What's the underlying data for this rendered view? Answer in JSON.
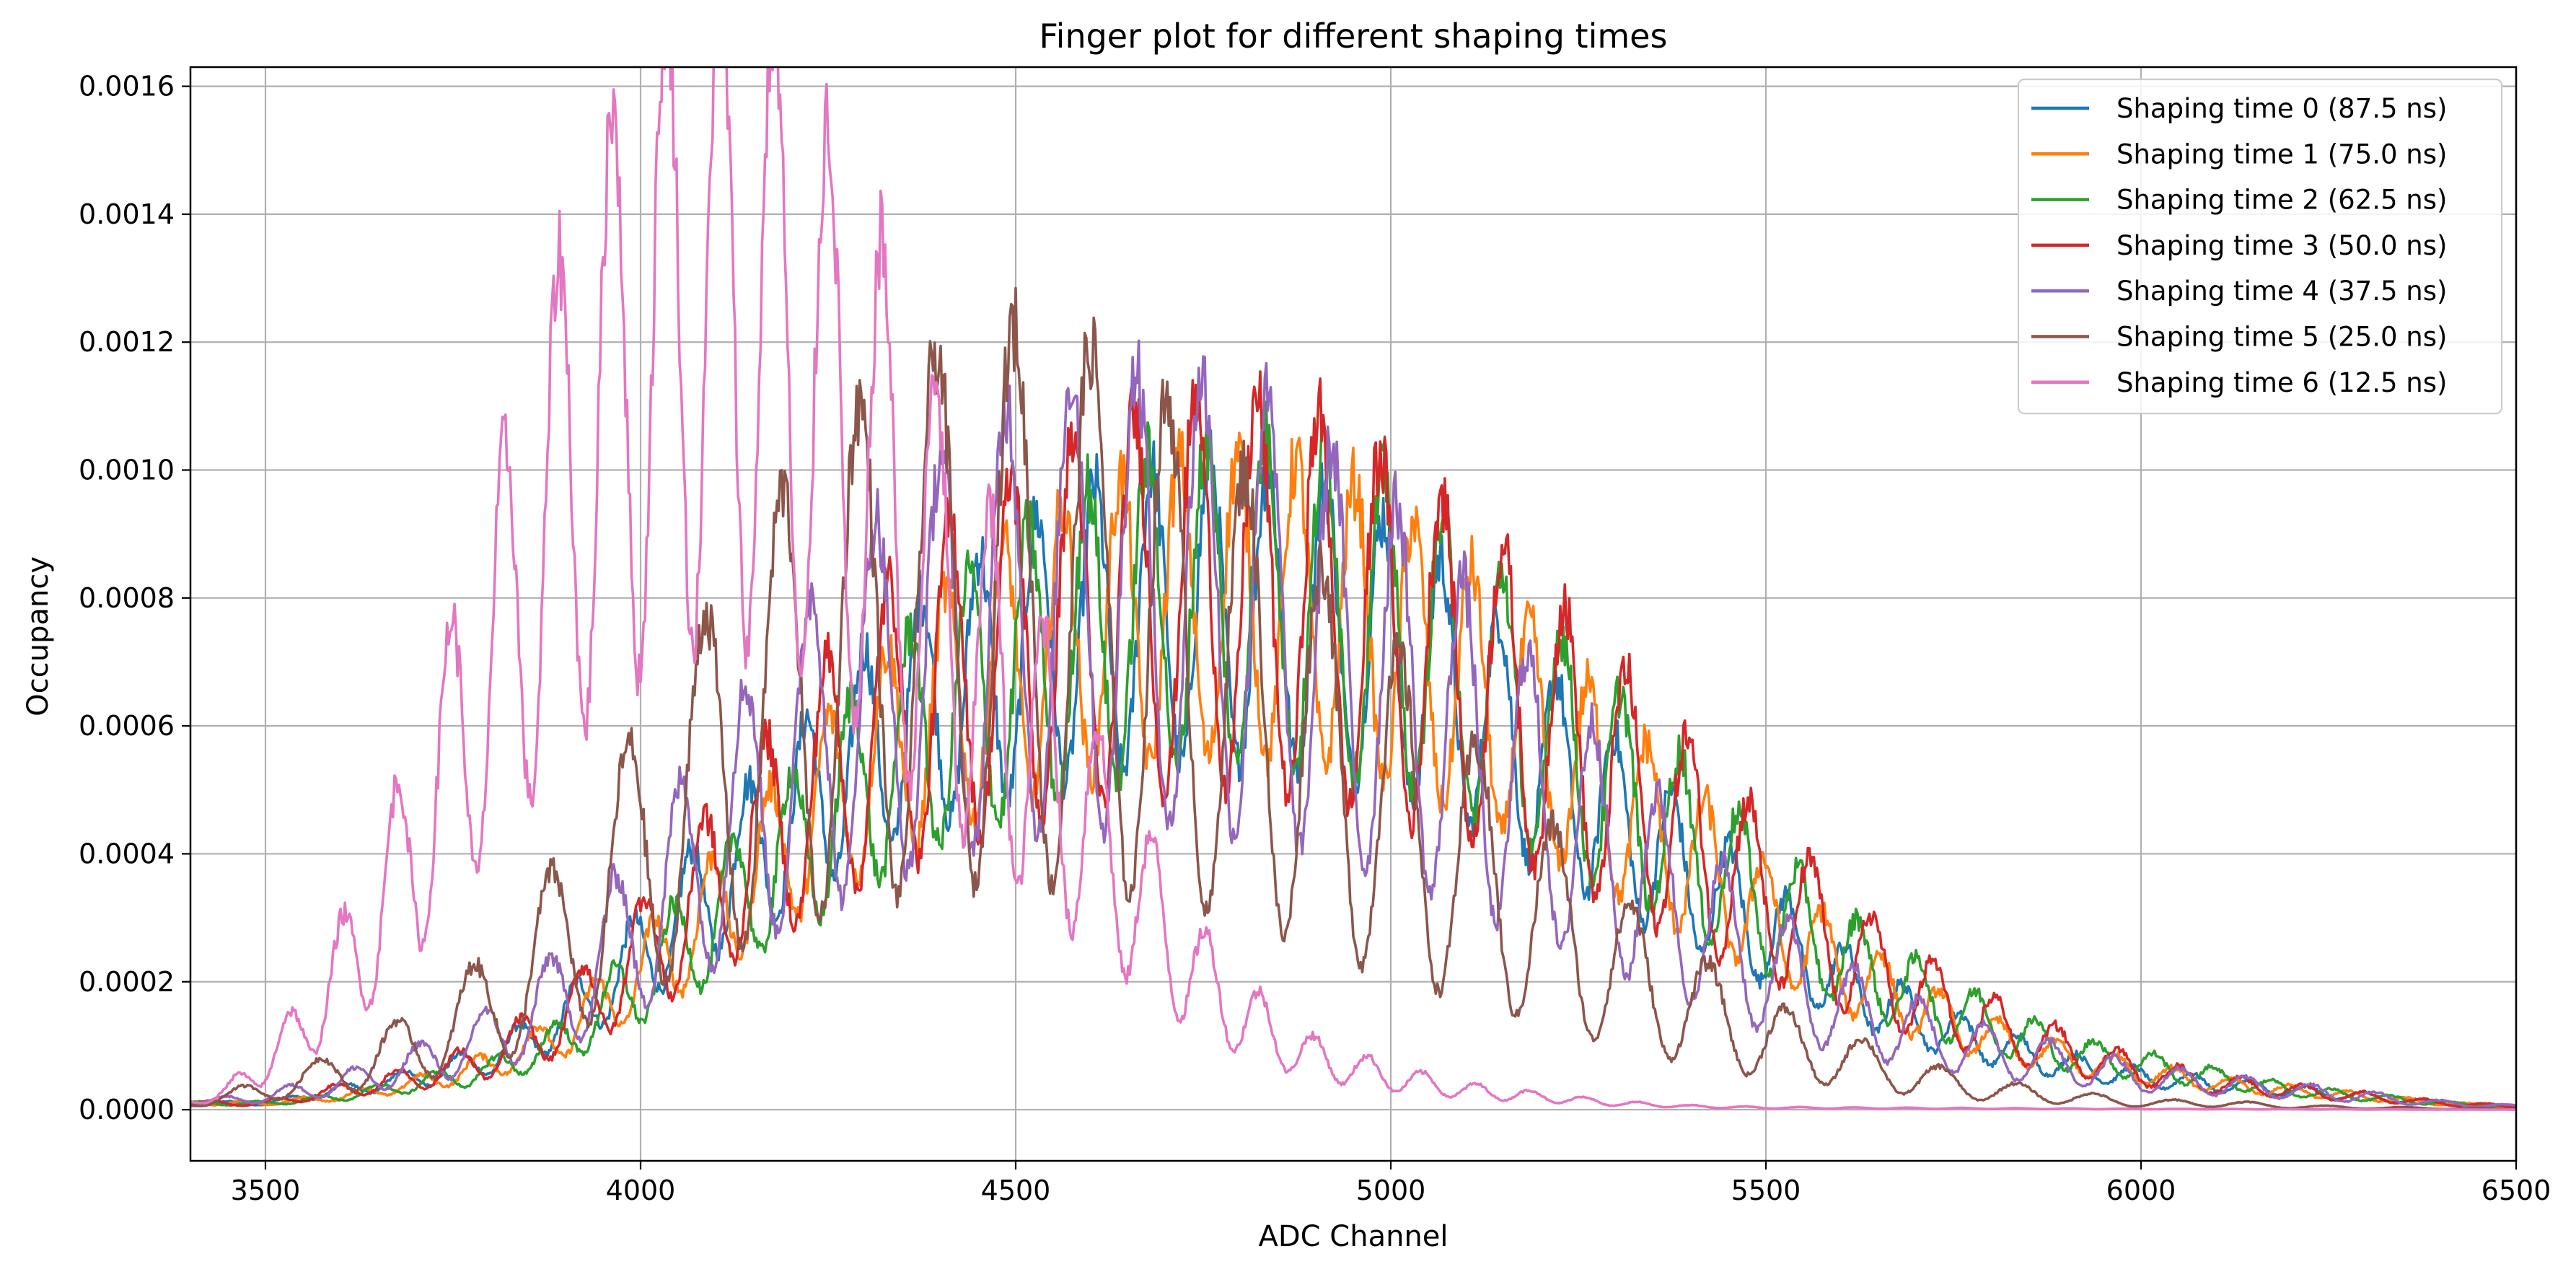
{
  "chart_data": {
    "type": "line",
    "title": "Finger plot for different shaping times",
    "xlabel": "ADC Channel",
    "ylabel": "Occupancy",
    "xlim": [
      3400,
      6500
    ],
    "ylim": [
      -8e-05,
      0.00163
    ],
    "x_ticks": [
      3500,
      4000,
      4500,
      5000,
      5500,
      6000,
      6500
    ],
    "x_tick_labels": [
      "3500",
      "4000",
      "4500",
      "5000",
      "5500",
      "6000",
      "6500"
    ],
    "y_ticks": [
      0,
      0.0002,
      0.0004,
      0.0006,
      0.0008,
      0.001,
      0.0012,
      0.0014,
      0.0016
    ],
    "y_tick_labels": [
      "0.0000",
      "0.0002",
      "0.0004",
      "0.0006",
      "0.0008",
      "0.0010",
      "0.0012",
      "0.0014",
      "0.0016"
    ],
    "grid": true,
    "legend_position": "top-right",
    "series": [
      {
        "name": "Shaping time 0 (87.5 ns)",
        "color": "#1f77b4",
        "x": [
          3400,
          3500,
          3600,
          3700,
          3800,
          3900,
          4000,
          4100,
          4200,
          4300,
          4400,
          4500,
          4600,
          4700,
          4800,
          4900,
          5000,
          5100,
          5200,
          5300,
          5400,
          5500,
          5600,
          5700,
          5800,
          5900,
          6000,
          6100,
          6200,
          6300,
          6400,
          6500
        ],
        "y": [
          1e-05,
          1e-05,
          3e-05,
          5e-05,
          8e-05,
          0.00014,
          0.00024,
          0.00035,
          0.00045,
          0.00056,
          0.00064,
          0.0007,
          0.00075,
          0.00077,
          0.00078,
          0.00076,
          0.00071,
          0.00064,
          0.00054,
          0.00045,
          0.00036,
          0.00028,
          0.0002,
          0.00014,
          0.0001,
          7e-05,
          5e-05,
          4e-05,
          3e-05,
          2e-05,
          1e-05,
          5e-06
        ],
        "finger_spacing": 77,
        "finger_phase": 3450,
        "finger_amplitude": 0.3
      },
      {
        "name": "Shaping time 1 (75.0 ns)",
        "color": "#ff7f0e",
        "x": [
          3400,
          3500,
          3600,
          3700,
          3800,
          3900,
          4000,
          4100,
          4200,
          4300,
          4400,
          4500,
          4600,
          4700,
          4800,
          4900,
          5000,
          5100,
          5200,
          5300,
          5400,
          5500,
          5600,
          5700,
          5800,
          5900,
          6000,
          6100,
          6200,
          6300,
          6400,
          6500
        ],
        "y": [
          1e-05,
          1e-05,
          2e-05,
          4e-05,
          7e-05,
          0.00012,
          0.00021,
          0.00031,
          0.00042,
          0.00053,
          0.00062,
          0.00069,
          0.00075,
          0.00078,
          0.00079,
          0.00078,
          0.00073,
          0.00066,
          0.00057,
          0.00048,
          0.00039,
          0.0003,
          0.00022,
          0.00016,
          0.00011,
          8e-05,
          6e-05,
          4e-05,
          3e-05,
          2e-05,
          1e-05,
          5e-06
        ],
        "finger_spacing": 78,
        "finger_phase": 3470,
        "finger_amplitude": 0.3
      },
      {
        "name": "Shaping time 2 (62.5 ns)",
        "color": "#2ca02c",
        "x": [
          3400,
          3500,
          3600,
          3700,
          3800,
          3900,
          4000,
          4100,
          4200,
          4300,
          4400,
          4500,
          4600,
          4700,
          4800,
          4900,
          5000,
          5100,
          5200,
          5300,
          5400,
          5500,
          5600,
          5700,
          5800,
          5900,
          6000,
          6100,
          6200,
          6300,
          6400,
          6500
        ],
        "y": [
          1e-05,
          1e-05,
          2e-05,
          4e-05,
          6e-05,
          0.00011,
          0.0002,
          0.0003,
          0.0004,
          0.00051,
          0.00061,
          0.00068,
          0.00074,
          0.00078,
          0.0008,
          0.00079,
          0.00075,
          0.00068,
          0.00059,
          0.0005,
          0.00041,
          0.00032,
          0.00024,
          0.00018,
          0.00013,
          9e-05,
          7e-05,
          5e-05,
          3e-05,
          2e-05,
          1e-05,
          5e-06
        ],
        "finger_spacing": 79,
        "finger_phase": 3490,
        "finger_amplitude": 0.32
      },
      {
        "name": "Shaping time 3 (50.0 ns)",
        "color": "#d62728",
        "x": [
          3400,
          3500,
          3600,
          3700,
          3800,
          3900,
          4000,
          4100,
          4200,
          4300,
          4400,
          4500,
          4600,
          4700,
          4800,
          4900,
          5000,
          5100,
          5200,
          5300,
          5400,
          5500,
          5600,
          5700,
          5800,
          5900,
          6000,
          6100,
          6200,
          6300,
          6400,
          6500
        ],
        "y": [
          1e-05,
          1e-05,
          3e-05,
          5e-05,
          8e-05,
          0.00014,
          0.00024,
          0.00035,
          0.00046,
          0.00057,
          0.00066,
          0.00072,
          0.00077,
          0.0008,
          0.00081,
          0.00079,
          0.00074,
          0.00068,
          0.0006,
          0.00051,
          0.00042,
          0.00033,
          0.00025,
          0.00018,
          0.00013,
          9e-05,
          6e-05,
          4e-05,
          3e-05,
          2e-05,
          1e-05,
          5e-06
        ],
        "finger_spacing": 82,
        "finger_phase": 3510,
        "finger_amplitude": 0.38
      },
      {
        "name": "Shaping time 4 (37.5 ns)",
        "color": "#9467bd",
        "x": [
          3400,
          3500,
          3600,
          3700,
          3800,
          3900,
          4000,
          4100,
          4200,
          4300,
          4400,
          4500,
          4600,
          4700,
          4800,
          4900,
          5000,
          5100,
          5200,
          5300,
          5400,
          5500,
          5600,
          5700,
          5800,
          5900,
          6000,
          6100,
          6200,
          6300,
          6400,
          6500
        ],
        "y": [
          1e-05,
          2e-05,
          4e-05,
          7e-05,
          0.00011,
          0.00018,
          0.00029,
          0.00041,
          0.00053,
          0.00063,
          0.00071,
          0.00077,
          0.0008,
          0.0008,
          0.00078,
          0.00073,
          0.00066,
          0.00057,
          0.00048,
          0.00039,
          0.0003,
          0.00022,
          0.00016,
          0.00012,
          9e-05,
          7e-05,
          5e-05,
          4e-05,
          3e-05,
          2e-05,
          1e-05,
          5e-06
        ],
        "finger_spacing": 87,
        "finger_phase": 3530,
        "finger_amplitude": 0.45
      },
      {
        "name": "Shaping time 5 (25.0 ns)",
        "color": "#8c564b",
        "x": [
          3400,
          3500,
          3600,
          3700,
          3800,
          3900,
          4000,
          4100,
          4200,
          4300,
          4400,
          4500,
          4600,
          4700,
          4800,
          4900,
          5000,
          5100,
          5200,
          5300,
          5400,
          5500,
          5600,
          5700,
          5800,
          5900,
          6000,
          6100,
          6200,
          6300,
          6400,
          6500
        ],
        "y": [
          1e-05,
          3e-05,
          6e-05,
          0.0001,
          0.00016,
          0.00026,
          0.00039,
          0.00052,
          0.00064,
          0.00072,
          0.00077,
          0.00079,
          0.00077,
          0.00072,
          0.00065,
          0.00056,
          0.00047,
          0.00038,
          0.0003,
          0.00022,
          0.00016,
          0.00011,
          8e-05,
          5e-05,
          3e-05,
          2e-05,
          1e-05,
          1e-05,
          5e-06,
          3e-06,
          2e-06,
          1e-06
        ],
        "finger_spacing": 103,
        "finger_phase": 3570,
        "finger_amplitude": 0.55
      },
      {
        "name": "Shaping time 6 (12.5 ns)",
        "color": "#e377c2",
        "x": [
          3400,
          3450,
          3500,
          3550,
          3600,
          3650,
          3700,
          3750,
          3800,
          3850,
          3900,
          3950,
          4000,
          4050,
          4100,
          4150,
          4200,
          4250,
          4300,
          4350,
          4400,
          4450,
          4500,
          4550,
          4600,
          4650,
          4700,
          4750,
          4800,
          4850,
          4900,
          5000,
          5100,
          5200,
          5300,
          5400,
          5500,
          6000,
          6500
        ],
        "y": [
          1e-05,
          3e-05,
          7e-05,
          0.00013,
          0.00021,
          0.0003,
          0.00042,
          0.00055,
          0.00068,
          0.00082,
          0.00097,
          0.00109,
          0.00118,
          0.00124,
          0.00126,
          0.00125,
          0.00118,
          0.00109,
          0.001,
          0.0009,
          0.00079,
          0.00069,
          0.0006,
          0.00052,
          0.00044,
          0.00035,
          0.00027,
          0.0002,
          0.00015,
          0.00011,
          8e-05,
          5e-05,
          3e-05,
          2e-05,
          1e-05,
          5e-06,
          3e-06,
          1e-06,
          0.0
        ],
        "finger_spacing": 72,
        "finger_phase": 3530,
        "finger_amplitude": 0.42
      }
    ]
  }
}
